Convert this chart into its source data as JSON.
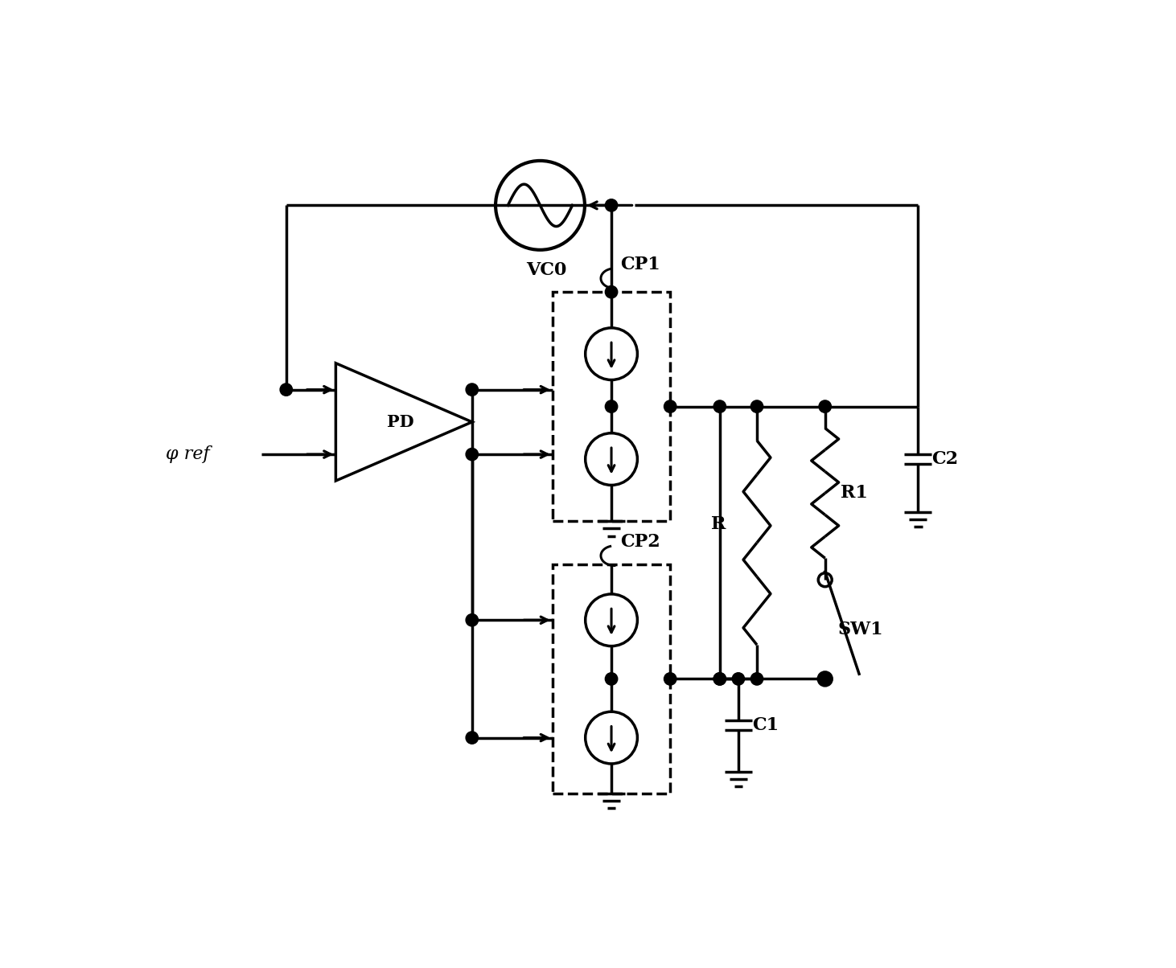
{
  "bg": "#ffffff",
  "lc": "#000000",
  "lw": 2.5,
  "fw": 14.62,
  "fh": 12.04,
  "dpi": 100,
  "labels": {
    "VCO": "VC0",
    "PD": "PD",
    "phi": "φ ref",
    "CP1": "CP1",
    "CP2": "CP2",
    "R": "R",
    "R1": "R1",
    "SW1": "SW1",
    "C1": "C1",
    "C2": "C2"
  },
  "fs": 16,
  "cs_r": 0.42
}
